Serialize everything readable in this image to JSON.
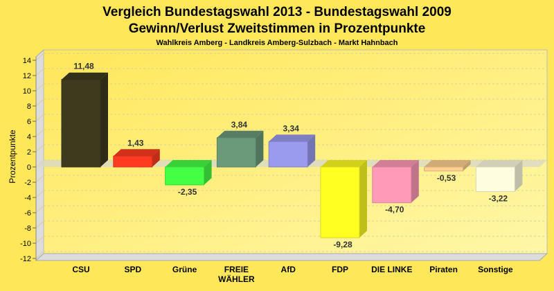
{
  "chart_data": {
    "type": "bar",
    "title": "Vergleich Bundestagswahl 2013 - Bundestagswahl 2009",
    "subtitle": "Gewinn/Verlust Zweitstimmen in Prozentpunkte",
    "subtitle2": "Wahlkreis Amberg - Landkreis Amberg-Sulzbach - Markt Hahnbach",
    "xlabel": "",
    "ylabel": "Prozentpunkte",
    "ylim": [
      -12,
      14
    ],
    "yticks": [
      14,
      12,
      10,
      8,
      6,
      4,
      2,
      0,
      -2,
      -4,
      -6,
      -8,
      -10,
      -12
    ],
    "grid": true,
    "categories": [
      "CSU",
      "SPD",
      "Grüne",
      "FREIE WÄHLER",
      "AfD",
      "FDP",
      "DIE LINKE",
      "Piraten",
      "Sonstige"
    ],
    "category_lines": [
      [
        "CSU"
      ],
      [
        "SPD"
      ],
      [
        "Grüne"
      ],
      [
        "FREIE",
        "WÄHLER"
      ],
      [
        "AfD"
      ],
      [
        "FDP"
      ],
      [
        "DIE LINKE"
      ],
      [
        "Piraten"
      ],
      [
        "Sonstige"
      ]
    ],
    "values": [
      11.48,
      1.43,
      -2.35,
      3.84,
      3.34,
      -9.28,
      -4.7,
      -0.53,
      -3.22
    ],
    "labels": [
      "11,48",
      "1,43",
      "-2,35",
      "3,84",
      "3,34",
      "-9,28",
      "-4,70",
      "-0,53",
      "-3,22"
    ],
    "colors": [
      "#3d3a1e",
      "#ff3a20",
      "#44ff44",
      "#6a9a7a",
      "#9a9aee",
      "#ffff22",
      "#ff9ab8",
      "#ffd090",
      "#fffde0"
    ]
  }
}
